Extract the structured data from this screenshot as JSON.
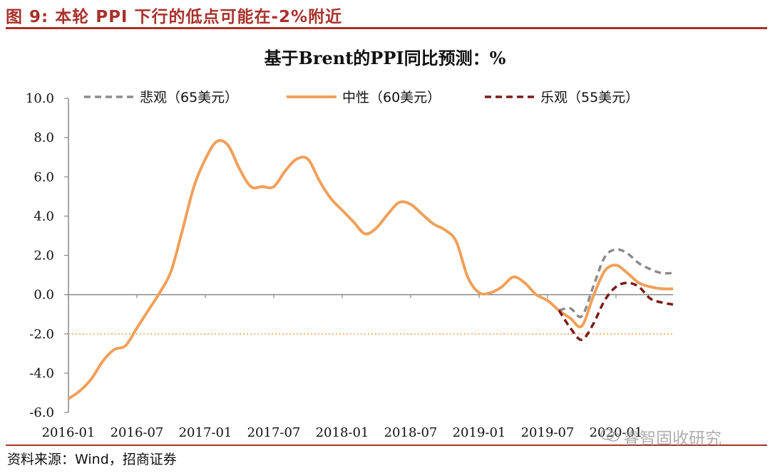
{
  "header": {
    "title": "图 9:  本轮 PPI 下行的低点可能在-2%附近"
  },
  "footer": {
    "source": "资料来源：Wind，招商证券",
    "watermark": "睿智固收研究"
  },
  "colors": {
    "accent": "#a8312b",
    "pessimistic": "#8c8c8c",
    "neutral": "#f0a05a",
    "optimistic": "#7b1a1a",
    "reference_line": "#f0a05a"
  },
  "chart_data": {
    "type": "line",
    "title": "基于Brent的PPI同比预测：%",
    "xlabel": "",
    "ylabel": "",
    "ylim": [
      -6,
      10
    ],
    "yticks": [
      -6,
      -4,
      -2,
      0,
      2,
      4,
      6,
      8,
      10
    ],
    "ytick_labels": [
      "-6.0",
      "-4.0",
      "-2.0",
      "0.0",
      "2.0",
      "4.0",
      "6.0",
      "8.0",
      "10.0"
    ],
    "xticks": [
      "2016-01",
      "2016-07",
      "2017-01",
      "2017-07",
      "2018-01",
      "2018-07",
      "2019-01",
      "2019-07",
      "2020-01"
    ],
    "x_start": "2016-01",
    "x_end": "2020-06",
    "grid": false,
    "legend_position": "top",
    "reference_line": {
      "y": -2,
      "style": "dotted"
    },
    "series": [
      {
        "name": "悲观（65美元）",
        "style": "dashed",
        "color": "#8c8c8c",
        "x": [
          "2019-08",
          "2019-09",
          "2019-10",
          "2019-11",
          "2019-12",
          "2020-01",
          "2020-02",
          "2020-03",
          "2020-04",
          "2020-05",
          "2020-06"
        ],
        "values": [
          -0.8,
          -0.7,
          -1.1,
          0.4,
          1.9,
          2.3,
          2.1,
          1.6,
          1.3,
          1.1,
          1.1
        ]
      },
      {
        "name": "中性（60美元）",
        "style": "solid",
        "color": "#f0a05a",
        "x": [
          "2016-01",
          "2016-02",
          "2016-03",
          "2016-04",
          "2016-05",
          "2016-06",
          "2016-07",
          "2016-08",
          "2016-09",
          "2016-10",
          "2016-11",
          "2016-12",
          "2017-01",
          "2017-02",
          "2017-03",
          "2017-04",
          "2017-05",
          "2017-06",
          "2017-07",
          "2017-08",
          "2017-09",
          "2017-10",
          "2017-11",
          "2017-12",
          "2018-01",
          "2018-02",
          "2018-03",
          "2018-04",
          "2018-05",
          "2018-06",
          "2018-07",
          "2018-08",
          "2018-09",
          "2018-10",
          "2018-11",
          "2018-12",
          "2019-01",
          "2019-02",
          "2019-03",
          "2019-04",
          "2019-05",
          "2019-06",
          "2019-07",
          "2019-08",
          "2019-09",
          "2019-10",
          "2019-11",
          "2019-12",
          "2020-01",
          "2020-02",
          "2020-03",
          "2020-04",
          "2020-05",
          "2020-06"
        ],
        "values": [
          -5.3,
          -4.9,
          -4.3,
          -3.4,
          -2.8,
          -2.6,
          -1.7,
          -0.8,
          0.1,
          1.2,
          3.3,
          5.5,
          6.9,
          7.8,
          7.6,
          6.4,
          5.5,
          5.5,
          5.5,
          6.3,
          6.9,
          6.9,
          5.8,
          4.9,
          4.3,
          3.7,
          3.1,
          3.4,
          4.1,
          4.7,
          4.6,
          4.1,
          3.6,
          3.3,
          2.7,
          0.9,
          0.1,
          0.1,
          0.4,
          0.9,
          0.6,
          0.0,
          -0.3,
          -0.8,
          -1.2,
          -1.6,
          -0.1,
          1.2,
          1.5,
          1.1,
          0.6,
          0.4,
          0.3,
          0.3
        ]
      },
      {
        "name": "乐观（55美元）",
        "style": "dashed",
        "color": "#7b1a1a",
        "x": [
          "2019-08",
          "2019-09",
          "2019-10",
          "2019-11",
          "2019-12",
          "2020-01",
          "2020-02",
          "2020-03",
          "2020-04",
          "2020-05",
          "2020-06"
        ],
        "values": [
          -0.8,
          -1.7,
          -2.3,
          -1.5,
          -0.3,
          0.4,
          0.6,
          0.4,
          -0.2,
          -0.4,
          -0.5
        ]
      }
    ]
  }
}
